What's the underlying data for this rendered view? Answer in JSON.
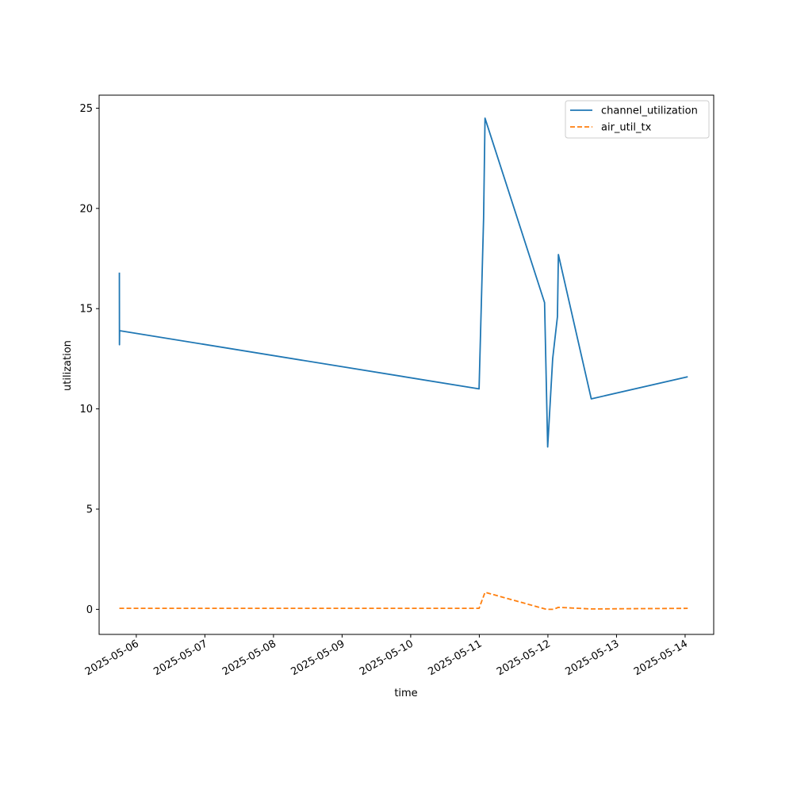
{
  "chart_data": {
    "type": "line",
    "xlabel": "time",
    "ylabel": "utilization",
    "x_ticks": [
      "2025-05-06",
      "2025-05-07",
      "2025-05-08",
      "2025-05-09",
      "2025-05-10",
      "2025-05-11",
      "2025-05-12",
      "2025-05-13",
      "2025-05-14"
    ],
    "y_ticks": [
      0,
      5,
      10,
      15,
      20,
      25
    ],
    "xlim": [
      "2025-05-05 11:00",
      "2025-05-14 10:00"
    ],
    "ylim": [
      -1.25,
      25.65
    ],
    "grid": false,
    "legend_position": "upper right",
    "series": [
      {
        "name": "channel_utilization",
        "color": "#1f77b4",
        "style": "solid",
        "points": [
          [
            "2025-05-05 18:05",
            16.8
          ],
          [
            "2025-05-05 18:07",
            13.2
          ],
          [
            "2025-05-05 18:10",
            13.9
          ],
          [
            "2025-05-10 23:55",
            11.0
          ],
          [
            "2025-05-11 01:30",
            19.5
          ],
          [
            "2025-05-11 02:00",
            24.5
          ],
          [
            "2025-05-11 22:50",
            15.3
          ],
          [
            "2025-05-11 23:55",
            8.1
          ],
          [
            "2025-05-12 01:40",
            12.5
          ],
          [
            "2025-05-12 03:20",
            14.6
          ],
          [
            "2025-05-12 03:40",
            17.7
          ],
          [
            "2025-05-12 15:10",
            10.5
          ],
          [
            "2025-05-14 00:55",
            11.6
          ]
        ]
      },
      {
        "name": "air_util_tx",
        "color": "#ff7f0e",
        "style": "dashed",
        "points": [
          [
            "2025-05-05 18:05",
            0.05
          ],
          [
            "2025-05-10 23:55",
            0.05
          ],
          [
            "2025-05-11 02:00",
            0.85
          ],
          [
            "2025-05-11 23:30",
            0.0
          ],
          [
            "2025-05-12 02:00",
            0.0
          ],
          [
            "2025-05-12 03:40",
            0.1
          ],
          [
            "2025-05-12 15:10",
            0.02
          ],
          [
            "2025-05-14 00:55",
            0.05
          ]
        ]
      }
    ]
  }
}
